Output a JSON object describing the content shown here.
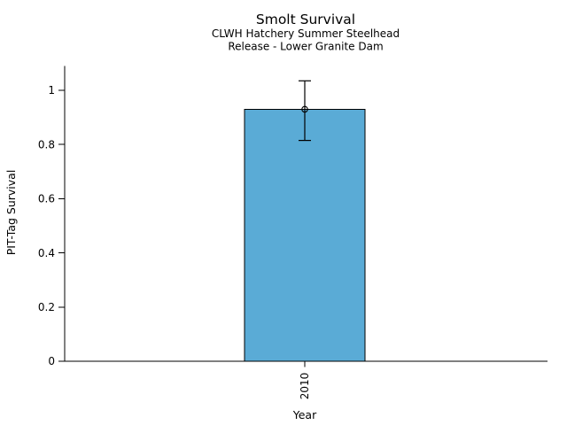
{
  "page": {
    "background": "#ffffff"
  },
  "chart_data": {
    "type": "bar",
    "title": "Smolt Survival",
    "subtitle_lines": [
      "CLWH Hatchery Summer Steelhead",
      "Release - Lower Granite Dam"
    ],
    "xlabel": "Year",
    "ylabel": "PIT-Tag Survival",
    "categories": [
      "2010"
    ],
    "values": [
      0.93
    ],
    "error_bars": [
      {
        "low": 0.815,
        "high": 1.035
      }
    ],
    "yticks": [
      0,
      0.2,
      0.4,
      0.6,
      0.8,
      1
    ],
    "ytick_labels": [
      "0",
      "0.2",
      "0.4",
      "0.6",
      "0.8",
      "1"
    ],
    "ylim": [
      0,
      1.09
    ],
    "grid": false,
    "legend": "none",
    "marker": "open-circle",
    "x_tick_label_rotation_deg": 90,
    "colors": {
      "bar_fill": "#5AABD6",
      "bar_edge": "#000000",
      "error_bar": "#000000",
      "axis": "#000000",
      "text": "#000000"
    }
  }
}
